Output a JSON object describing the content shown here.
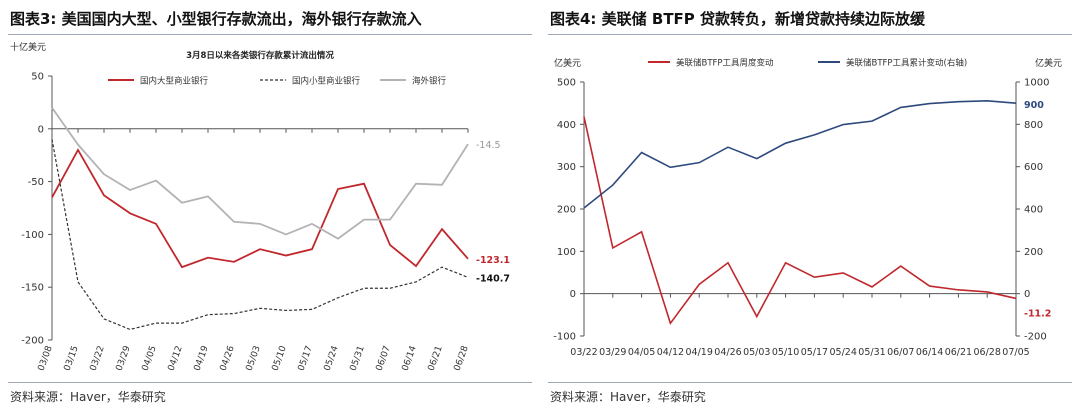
{
  "figures": [
    {
      "title": "图表3:  美国国内大型、小型银行存款流出，海外银行存款流入",
      "source": "资料来源：Haver，华泰研究"
    },
    {
      "title": "图表4:  美联储 BTFP 贷款转负，新增贷款持续边际放缓",
      "source": "资料来源：Haver，华泰研究"
    }
  ],
  "chart_data": [
    {
      "type": "line",
      "title": "3月8日以来各类银行存款累计流出情况",
      "ylabel": "十亿美元",
      "ylim": [
        -200,
        50
      ],
      "yticks": [
        50,
        0,
        -50,
        -100,
        -150,
        -200
      ],
      "categories": [
        "03/08",
        "03/15",
        "03/22",
        "03/29",
        "04/05",
        "04/12",
        "04/19",
        "04/26",
        "05/03",
        "05/10",
        "05/17",
        "05/24",
        "05/31",
        "06/07",
        "06/14",
        "06/21",
        "06/28"
      ],
      "series": [
        {
          "name": "国内大型商业银行",
          "color": "#c0282d",
          "dash": "solid",
          "values": [
            -65,
            -20,
            -63,
            -80,
            -90,
            -131,
            -122,
            -126,
            -114,
            -120,
            -114,
            -57,
            -52,
            -110,
            -130,
            -95,
            -123.1
          ],
          "end_label": "-123.1"
        },
        {
          "name": "国内小型商业银行",
          "color": "#333333",
          "dash": "dashed",
          "values": [
            -10,
            -145,
            -180,
            -190,
            -184,
            -184,
            -176,
            -175,
            -170,
            -172,
            -171,
            -160,
            -151,
            -151,
            -145,
            -131,
            -140.7
          ],
          "end_label": "-140.7"
        },
        {
          "name": "海外银行",
          "color": "#b3b3b3",
          "dash": "solid",
          "values": [
            20,
            -15,
            -43,
            -58,
            -49,
            -70,
            -64,
            -88,
            -90,
            -100,
            -90,
            -104,
            -86,
            -86,
            -52,
            -53,
            -14.5
          ],
          "end_label": "-14.5"
        }
      ]
    },
    {
      "type": "line",
      "ylabel_left": "亿美元",
      "ylabel_right": "亿美元",
      "ylim_left": [
        -100,
        500
      ],
      "yticks_left": [
        500,
        400,
        300,
        200,
        100,
        0,
        -100
      ],
      "ylim_right": [
        -200,
        1000
      ],
      "yticks_right": [
        1000,
        800,
        600,
        400,
        200,
        0,
        -200
      ],
      "categories": [
        "03/22",
        "03/29",
        "04/05",
        "04/12",
        "04/19",
        "04/26",
        "05/03",
        "05/10",
        "05/17",
        "05/24",
        "05/31",
        "06/07",
        "06/14",
        "06/21",
        "06/28",
        "07/05"
      ],
      "series": [
        {
          "name": "美联储BTFP工具周度变动",
          "axis": "left",
          "color": "#c0282d",
          "values": [
            418,
            108,
            146,
            -70,
            22,
            73,
            -54,
            73,
            39,
            49,
            16,
            65,
            18,
            9,
            4,
            -11.2
          ],
          "end_label": "-11.2"
        },
        {
          "name": "美联储BTFP工具累计变动(右轴)",
          "axis": "right",
          "color": "#2e4a7d",
          "values": [
            405,
            513,
            667,
            597,
            619,
            692,
            638,
            711,
            750,
            799,
            815,
            880,
            898,
            907,
            911,
            900
          ],
          "end_label": "900"
        }
      ]
    }
  ]
}
